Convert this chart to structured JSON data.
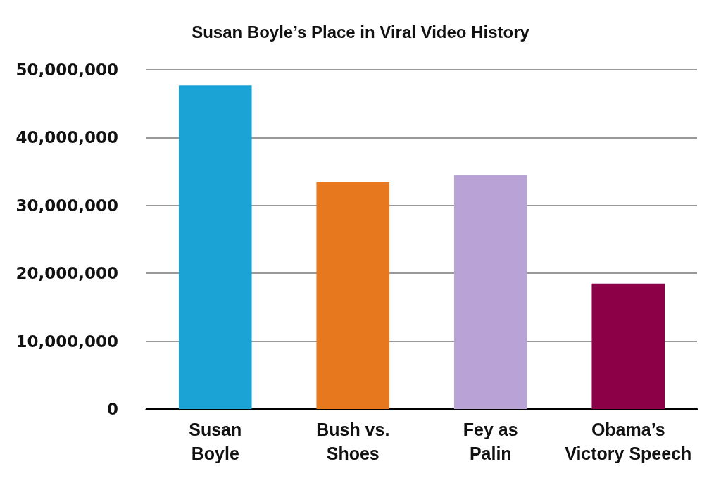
{
  "chart_data": {
    "type": "bar",
    "title": "Susan Boyle’s Place in Viral Video History",
    "categories": [
      "Susan\nBoyle",
      "Bush vs.\nShoes",
      "Fey as\nPalin",
      "Obama’s\nVictory Speech"
    ],
    "values": [
      47700000,
      33500000,
      34500000,
      18500000
    ],
    "colors": [
      "#1ba3d6",
      "#e8781e",
      "#b9a3d6",
      "#8c0047"
    ],
    "ylim": [
      0,
      50000000
    ],
    "yticks": [
      {
        "value": 0,
        "label": "0"
      },
      {
        "value": 10000000,
        "label": "10,000,000"
      },
      {
        "value": 20000000,
        "label": "20,000,000"
      },
      {
        "value": 30000000,
        "label": "30,000,000"
      },
      {
        "value": 40000000,
        "label": "40,000,000"
      },
      {
        "value": 50000000,
        "label": "50,000,000"
      }
    ],
    "grid": "y"
  }
}
